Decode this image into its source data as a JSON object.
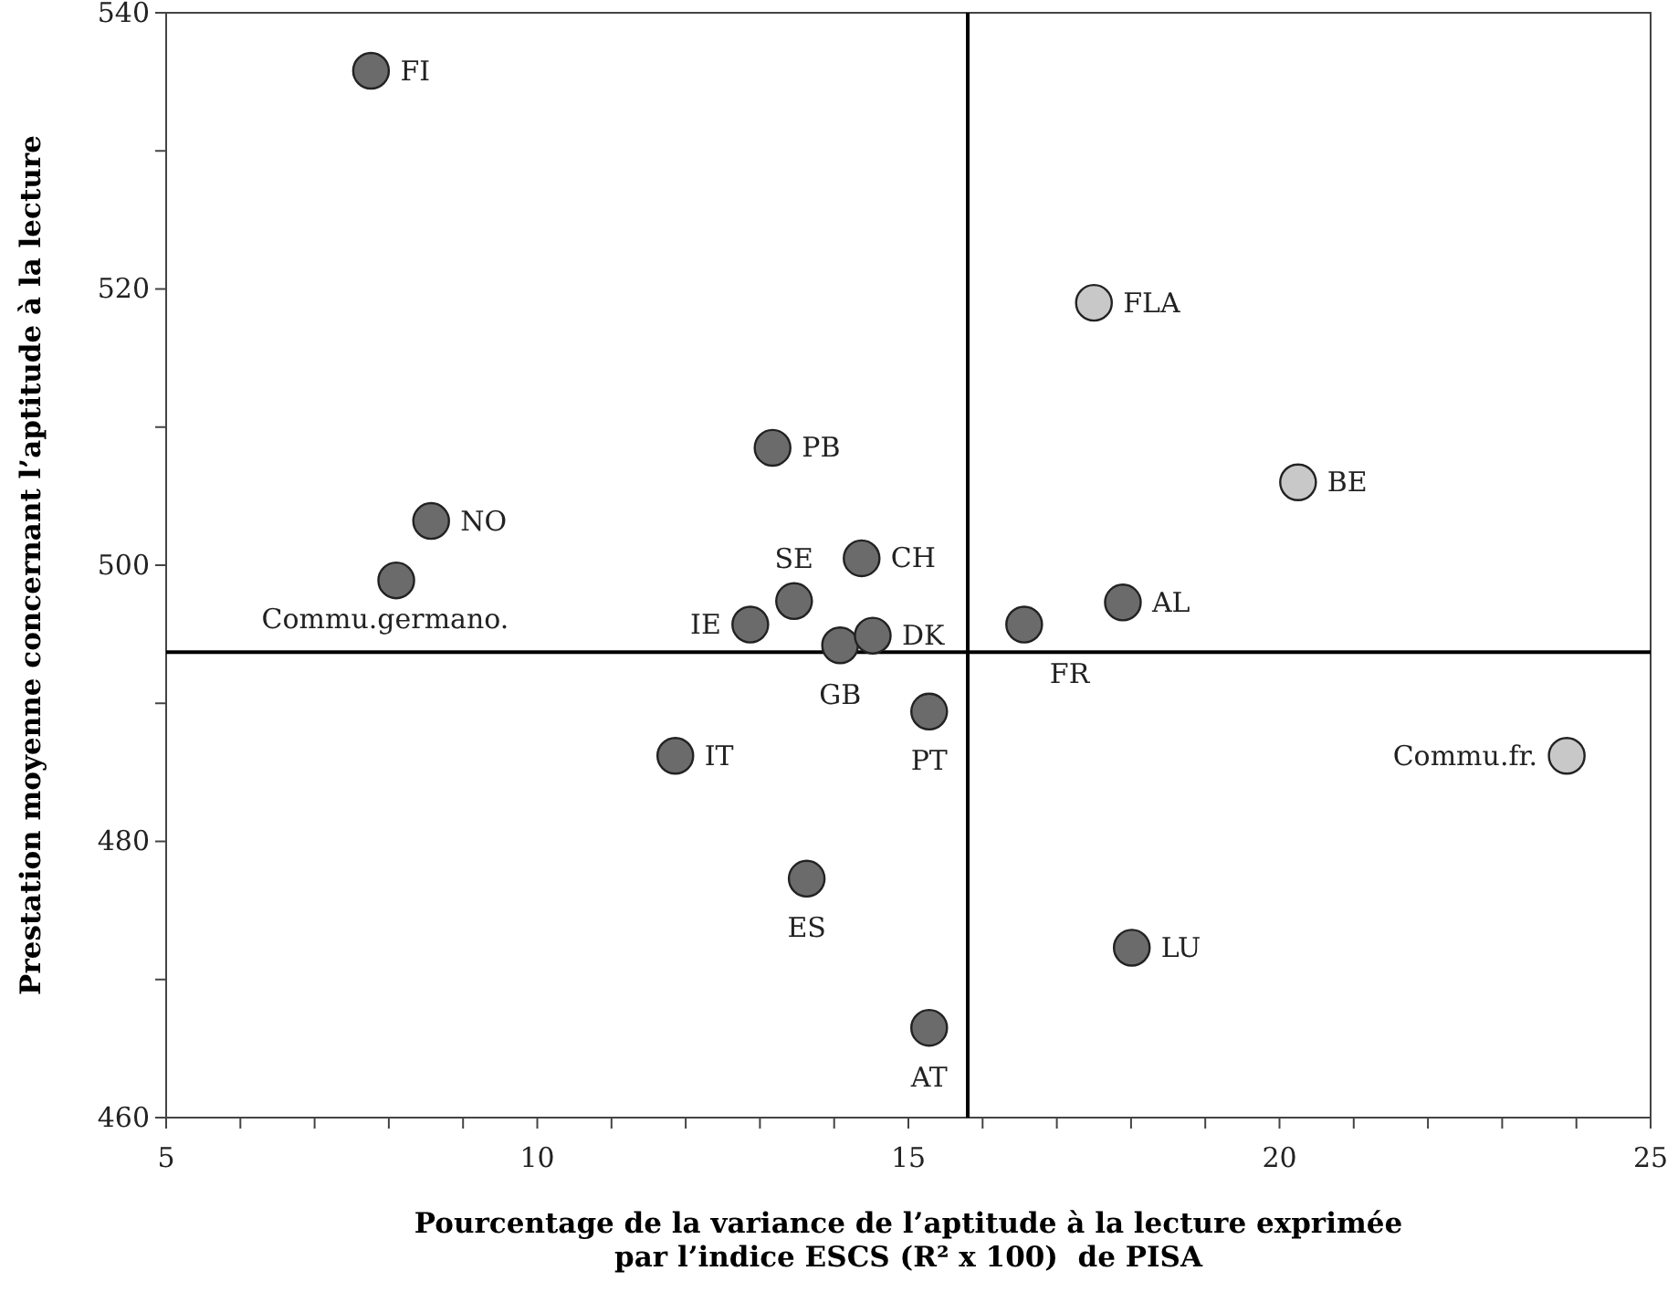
{
  "chart_data": {
    "type": "scatter",
    "xlabel": "Pourcentage de la variance de l’aptitude à la lecture exprimée\npar l’indice ESCS (R² x 100)  de PISA",
    "ylabel": "Prestation moyenne concernant l’aptitude à la lecture",
    "x": [
      7.76,
      8.57,
      8.1,
      13.17,
      13.46,
      14.37,
      12.87,
      14.08,
      14.52,
      16.56,
      15.28,
      11.86,
      13.63,
      15.28,
      18.01,
      17.5,
      20.25,
      17.89,
      23.87
    ],
    "values": [
      535.8,
      503.2,
      498.9,
      508.5,
      497.4,
      500.5,
      495.7,
      494.2,
      494.9,
      495.7,
      489.4,
      486.2,
      477.3,
      466.5,
      472.3,
      519.0,
      506.0,
      497.3,
      486.2
    ],
    "colors": [
      "#6b6b6b",
      "#6b6b6b",
      "#6b6b6b",
      "#6b6b6b",
      "#6b6b6b",
      "#6b6b6b",
      "#6b6b6b",
      "#6b6b6b",
      "#6b6b6b",
      "#6b6b6b",
      "#6b6b6b",
      "#6b6b6b",
      "#6b6b6b",
      "#6b6b6b",
      "#6b6b6b",
      "#c8c8c8",
      "#c8c8c8",
      "#6b6b6b",
      "#c8c8c8"
    ],
    "annotations": [
      {
        "text": "FI",
        "x": 7.76,
        "y": 535.8
      },
      {
        "text": "NO",
        "x": 8.57,
        "y": 503.2
      },
      {
        "text": "Commu.germano.",
        "x": 8.1,
        "y": 498.9
      },
      {
        "text": "PB",
        "x": 13.17,
        "y": 508.5
      },
      {
        "text": "SE",
        "x": 13.46,
        "y": 497.4
      },
      {
        "text": "CH",
        "x": 14.37,
        "y": 500.5
      },
      {
        "text": "IE",
        "x": 12.87,
        "y": 495.7
      },
      {
        "text": "GB",
        "x": 14.08,
        "y": 494.2
      },
      {
        "text": "DK",
        "x": 14.52,
        "y": 494.9
      },
      {
        "text": "FR",
        "x": 16.56,
        "y": 495.7
      },
      {
        "text": "PT",
        "x": 15.28,
        "y": 489.4
      },
      {
        "text": "IT",
        "x": 11.86,
        "y": 486.2
      },
      {
        "text": "ES",
        "x": 13.63,
        "y": 477.3
      },
      {
        "text": "AT",
        "x": 15.28,
        "y": 466.5
      },
      {
        "text": "LU",
        "x": 18.01,
        "y": 472.3
      },
      {
        "text": "FLA",
        "x": 17.5,
        "y": 519.0
      },
      {
        "text": "BE",
        "x": 20.25,
        "y": 506.0
      },
      {
        "text": "AL",
        "x": 17.89,
        "y": 497.3
      },
      {
        "text": "Commu.fr.",
        "x": 23.87,
        "y": 486.2
      }
    ],
    "xlim": [
      5,
      25
    ],
    "ylim": [
      460,
      540
    ],
    "xticks": [
      5,
      {
        "value": 6,
        "label": null
      },
      {
        "value": 7,
        "label": null
      },
      {
        "value": 8,
        "label": null
      },
      {
        "value": 9,
        "label": null
      },
      10,
      {
        "value": 11,
        "label": null
      },
      {
        "value": 12,
        "label": null
      },
      {
        "value": 13,
        "label": null
      },
      {
        "value": 14,
        "label": null
      },
      15,
      {
        "value": 16,
        "label": null
      },
      {
        "value": 17,
        "label": null
      },
      {
        "value": 18,
        "label": null
      },
      {
        "value": 19,
        "label": null
      },
      20,
      {
        "value": 21,
        "label": null
      },
      {
        "value": 22,
        "label": null
      },
      {
        "value": 23,
        "label": null
      },
      {
        "value": 24,
        "label": null
      },
      25
    ],
    "yticks": [
      460,
      {
        "value": 470,
        "label": null
      },
      480,
      {
        "value": 490,
        "label": null
      },
      500,
      {
        "value": 510,
        "label": null
      },
      520,
      {
        "value": 530,
        "label": null
      },
      540
    ],
    "ref_lines": [
      {
        "axis": "x",
        "value": 15.8,
        "color": "#000000"
      },
      {
        "axis": "y",
        "value": 493.7,
        "color": "#000000"
      }
    ],
    "marker": "circle",
    "grid": false
  }
}
